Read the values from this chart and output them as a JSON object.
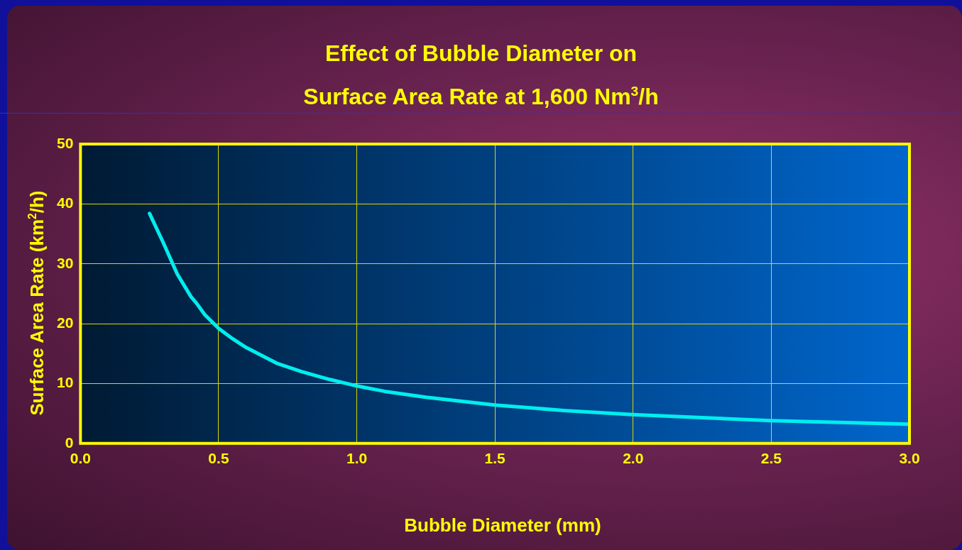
{
  "chart_data": {
    "type": "line",
    "title": "Effect of Bubble Diameter on\nSurface Area Rate at 1,600 Nm$^{3}$/h",
    "xlabel": "Bubble Diameter (mm)",
    "ylabel": "Surface Area Rate (km$^{2}$/h)",
    "x": [
      0.25,
      0.3,
      0.35,
      0.4,
      0.42,
      0.45,
      0.5,
      0.55,
      0.6,
      0.71,
      0.8,
      0.9,
      1.0,
      1.1,
      1.25,
      1.5,
      1.75,
      2.0,
      2.25,
      2.5,
      2.75,
      3.0
    ],
    "series": [
      {
        "color": "#00eeee",
        "values": [
          38.4,
          33.5,
          28.3,
          24.5,
          23.4,
          21.5,
          19.2,
          17.5,
          16.0,
          13.4,
          12.0,
          10.7,
          9.6,
          8.7,
          7.7,
          6.4,
          5.5,
          4.8,
          4.3,
          3.8,
          3.5,
          3.2
        ]
      }
    ],
    "xlim": [
      0,
      3
    ],
    "xticks": [
      {
        "value": 0,
        "label": "0.0"
      },
      {
        "value": 0.5,
        "label": "0.5"
      },
      {
        "value": 1,
        "label": "1.0"
      },
      {
        "value": 1.5,
        "label": "1.5"
      },
      {
        "value": 2,
        "label": "2.0"
      },
      {
        "value": 2.5,
        "label": "2.5"
      },
      {
        "value": 3,
        "label": "3.0"
      }
    ],
    "ylim": [
      0,
      50
    ],
    "yticks": [
      0,
      10,
      20,
      30,
      40,
      50
    ],
    "grid": true,
    "legend": false,
    "marker": "none",
    "line_style": "solid"
  }
}
